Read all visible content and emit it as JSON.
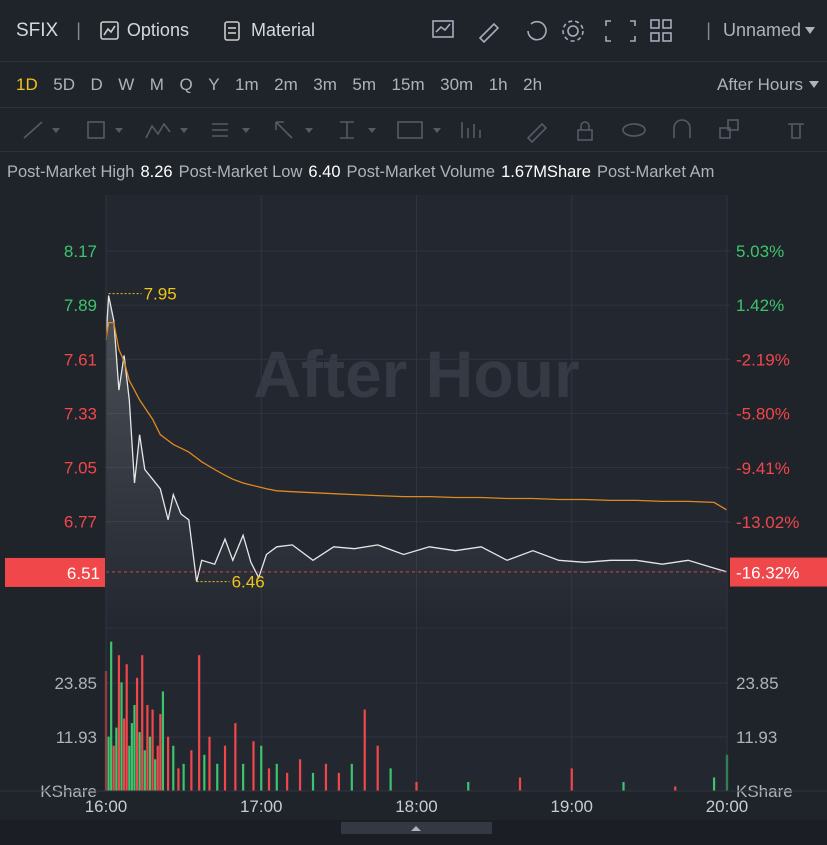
{
  "header": {
    "symbol": "SFIX",
    "options": "Options",
    "material": "Material",
    "layout": "Unnamed"
  },
  "timeframes": [
    "1D",
    "5D",
    "D",
    "W",
    "M",
    "Q",
    "Y",
    "1m",
    "2m",
    "3m",
    "5m",
    "15m",
    "30m",
    "1h",
    "2h"
  ],
  "session": "After Hours",
  "stats": [
    {
      "label": "Post-Market High",
      "value": "8.26"
    },
    {
      "label": "Post-Market Low",
      "value": "6.40"
    },
    {
      "label": "Post-Market Volume",
      "value": "1.67MShare"
    },
    {
      "label": "Post-Market Am"
    }
  ],
  "chart_data": [
    {
      "type": "line",
      "watermark": "After Hour",
      "x": [
        "16:00",
        "16:01",
        "16:03",
        "16:05",
        "16:07",
        "16:09",
        "16:11",
        "16:13",
        "16:15",
        "16:18",
        "16:21",
        "16:24",
        "16:26",
        "16:29",
        "16:32",
        "16:35",
        "16:37",
        "16:42",
        "16:46",
        "16:49",
        "16:53",
        "16:56",
        "16:59",
        "17:02",
        "17:06",
        "17:12",
        "17:20",
        "17:28",
        "17:36",
        "17:45",
        "17:55",
        "18:05",
        "18:15",
        "18:25",
        "18:35",
        "18:45",
        "18:55",
        "19:05",
        "19:15",
        "19:25",
        "19:35",
        "19:45",
        "19:55",
        "20:00"
      ],
      "series": [
        {
          "color": "#e6e6e6",
          "values": [
            7.71,
            7.94,
            7.81,
            7.45,
            7.63,
            7.4,
            6.97,
            7.22,
            7.04,
            6.99,
            6.94,
            6.78,
            6.91,
            6.81,
            6.78,
            6.46,
            6.57,
            6.55,
            6.68,
            6.57,
            6.7,
            6.56,
            6.48,
            6.6,
            6.64,
            6.65,
            6.57,
            6.64,
            6.63,
            6.65,
            6.6,
            6.64,
            6.62,
            6.64,
            6.57,
            6.62,
            6.57,
            6.56,
            6.57,
            6.57,
            6.55,
            6.57,
            6.53,
            6.51
          ]
        },
        {
          "color": "#e08a1e",
          "values": [
            7.71,
            7.8,
            7.8,
            7.66,
            7.6,
            7.5,
            7.45,
            7.4,
            7.36,
            7.3,
            7.22,
            7.19,
            7.17,
            7.15,
            7.13,
            7.1,
            7.08,
            7.04,
            7.01,
            6.99,
            6.97,
            6.96,
            6.95,
            6.94,
            6.93,
            6.925,
            6.92,
            6.915,
            6.91,
            6.905,
            6.9,
            6.9,
            6.895,
            6.895,
            6.89,
            6.89,
            6.885,
            6.885,
            6.88,
            6.88,
            6.875,
            6.875,
            6.87,
            6.83
          ]
        }
      ],
      "xlim": [
        "16:00",
        "20:00"
      ],
      "ylim": [
        6.22,
        8.46
      ],
      "yticks": [
        6.77,
        7.05,
        7.33,
        7.61,
        7.89,
        8.17
      ],
      "y2lim": [
        -20.08,
        8.76
      ],
      "y2ticks": [
        {
          "value": -13.02,
          "label": "-13.02%"
        },
        {
          "value": -9.41,
          "label": "-9.41%"
        },
        {
          "value": -5.8,
          "label": "-5.80%"
        },
        {
          "value": -2.19,
          "label": "-2.19%"
        },
        {
          "value": 1.42,
          "label": "1.42%"
        },
        {
          "value": 5.03,
          "label": "5.03%"
        }
      ],
      "up_color": "#3ec46d",
      "down_color": "#f0474b",
      "grid": true,
      "annotations": [
        {
          "x": "16:01",
          "value": 7.95
        },
        {
          "x": "16:35",
          "value": 6.46
        }
      ],
      "annotation_color": "#f0c419",
      "last": {
        "value": 6.51,
        "change": {
          "value": -16.32,
          "label": "-16.32%"
        }
      },
      "last_color": "#f0474b"
    },
    {
      "type": "bar",
      "x": [
        "16:00",
        "16:01",
        "16:02",
        "16:03",
        "16:04",
        "16:05",
        "16:06",
        "16:07",
        "16:08",
        "16:09",
        "16:10",
        "16:11",
        "16:12",
        "16:13",
        "16:14",
        "16:15",
        "16:16",
        "16:17",
        "16:18",
        "16:19",
        "16:20",
        "16:21",
        "16:22",
        "16:24",
        "16:26",
        "16:28",
        "16:30",
        "16:33",
        "16:36",
        "16:38",
        "16:40",
        "16:43",
        "16:46",
        "16:50",
        "16:53",
        "16:57",
        "17:00",
        "17:03",
        "17:06",
        "17:10",
        "17:15",
        "17:20",
        "17:25",
        "17:30",
        "17:35",
        "17:40",
        "17:45",
        "17:50",
        "18:00",
        "18:20",
        "18:40",
        "19:00",
        "19:20",
        "19:40",
        "19:55",
        "20:00"
      ],
      "values": [
        26.5,
        12,
        33,
        10,
        14,
        30,
        24,
        16,
        28,
        10,
        15,
        19,
        25,
        13,
        30,
        9,
        19,
        12,
        18,
        7,
        10,
        17,
        22,
        12,
        10,
        5,
        6,
        9,
        30,
        8,
        12,
        6,
        10,
        15,
        6,
        11,
        10,
        5,
        6,
        4,
        7,
        4,
        6,
        4,
        6,
        18,
        10,
        5,
        2,
        2,
        3,
        5,
        2,
        1,
        3,
        8
      ],
      "colors": [
        "#f0474b",
        "#3ec46d",
        "#3ec46d",
        "#f0474b",
        "#3ec46d",
        "#f0474b",
        "#3ec46d",
        "#f0474b",
        "#f0474b",
        "#3ec46d",
        "#3ec46d",
        "#3ec46d",
        "#f0474b",
        "#3ec46d",
        "#f0474b",
        "#3ec46d",
        "#f0474b",
        "#3ec46d",
        "#f0474b",
        "#3ec46d",
        "#f0474b",
        "#f0474b",
        "#3ec46d",
        "#f0474b",
        "#3ec46d",
        "#f0474b",
        "#3ec46d",
        "#f0474b",
        "#f0474b",
        "#3ec46d",
        "#f0474b",
        "#3ec46d",
        "#f0474b",
        "#f0474b",
        "#3ec46d",
        "#f0474b",
        "#3ec46d",
        "#f0474b",
        "#3ec46d",
        "#f0474b",
        "#f0474b",
        "#3ec46d",
        "#f0474b",
        "#f0474b",
        "#3ec46d",
        "#f0474b",
        "#f0474b",
        "#3ec46d",
        "#f0474b",
        "#3ec46d",
        "#f0474b",
        "#f0474b",
        "#3ec46d",
        "#f0474b",
        "#3ec46d",
        "#3ec46d"
      ],
      "xlim": [
        "16:00",
        "20:00"
      ],
      "xticks": [
        "16:00",
        "17:00",
        "18:00",
        "19:00",
        "20:00"
      ],
      "ylim": [
        0,
        36
      ],
      "yticks": [
        11.93,
        23.85
      ],
      "unit_label": "KShare",
      "grid": true
    }
  ]
}
